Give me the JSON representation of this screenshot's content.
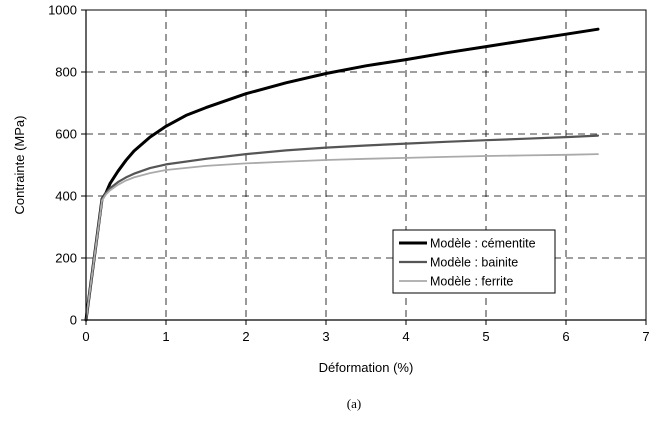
{
  "chart_data": {
    "type": "line",
    "xlabel": "Déformation (%)",
    "ylabel": "Contrainte (MPa)",
    "xlim": [
      0,
      7
    ],
    "ylim": [
      0,
      1000
    ],
    "xticks": [
      0,
      1,
      2,
      3,
      4,
      5,
      6,
      7
    ],
    "yticks": [
      0,
      200,
      400,
      600,
      800,
      1000
    ],
    "grid": true,
    "legend_position": "bottom-right",
    "caption": "(a)",
    "series": [
      {
        "name": "Modèle : cémentite",
        "color": "#000000",
        "x": [
          0,
          0.2,
          0.25,
          0.3,
          0.4,
          0.5,
          0.6,
          0.8,
          1.0,
          1.25,
          1.5,
          2.0,
          2.5,
          3.0,
          3.5,
          4.0,
          4.5,
          5.0,
          5.5,
          6.0,
          6.4
        ],
        "y": [
          0,
          390,
          410,
          440,
          480,
          515,
          545,
          590,
          625,
          660,
          685,
          730,
          765,
          795,
          820,
          840,
          862,
          882,
          902,
          922,
          938
        ]
      },
      {
        "name": "Modèle : bainite",
        "color": "#555555",
        "x": [
          0,
          0.2,
          0.25,
          0.3,
          0.4,
          0.5,
          0.6,
          0.8,
          1.0,
          1.5,
          2.0,
          2.5,
          3.0,
          3.5,
          4.0,
          4.5,
          5.0,
          5.5,
          6.0,
          6.4
        ],
        "y": [
          0,
          390,
          410,
          425,
          445,
          460,
          472,
          490,
          502,
          520,
          535,
          547,
          556,
          563,
          569,
          575,
          580,
          585,
          590,
          595
        ]
      },
      {
        "name": "Modèle : ferrite",
        "color": "#aaaaaa",
        "x": [
          0,
          0.2,
          0.25,
          0.3,
          0.4,
          0.5,
          0.6,
          0.8,
          1.0,
          1.5,
          2.0,
          2.5,
          3.0,
          3.5,
          4.0,
          4.5,
          5.0,
          5.5,
          6.0,
          6.4
        ],
        "y": [
          0,
          385,
          405,
          418,
          436,
          450,
          460,
          474,
          484,
          497,
          505,
          511,
          516,
          520,
          523,
          526,
          529,
          531,
          533,
          535
        ]
      }
    ]
  }
}
